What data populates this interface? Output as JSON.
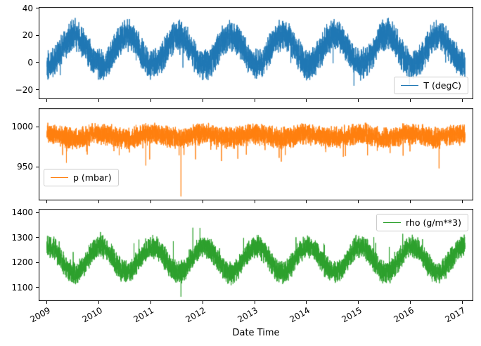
{
  "figure": {
    "background": "#ffffff",
    "xlabel": "Date Time",
    "xlim": [
      2008.84,
      2017.21
    ],
    "x_ticks": [
      2009,
      2010,
      2011,
      2012,
      2013,
      2014,
      2015,
      2016,
      2017
    ],
    "axis_color": "#000000",
    "grid": false
  },
  "chart_data": [
    {
      "type": "line",
      "name": "temperature",
      "series": [
        {
          "name": "T (degC)",
          "color": "#1f77b4"
        }
      ],
      "x_range": [
        2009.0,
        2017.05
      ],
      "ylim": [
        -27,
        41
      ],
      "yticks": [
        -20,
        0,
        20,
        40
      ],
      "legend_position": "lower-right",
      "observed": {
        "min": -23,
        "max": 38,
        "summer_mean": 20,
        "winter_mean": -1,
        "pattern": "annual seasonal cycle with high-frequency noise"
      },
      "signal": {
        "t_start": 2009.0,
        "t_end": 2017.05,
        "n": 6000,
        "mean": 9.5,
        "amp": 11,
        "peak_frac": 0.54,
        "noise1": 7,
        "noise2": 6,
        "rare_prob": 0.006,
        "rare_scale": -9,
        "clamp": [
          -23.5,
          38
        ],
        "spikes": []
      },
      "show_x_labels": false
    },
    {
      "type": "line",
      "name": "pressure",
      "series": [
        {
          "name": "p (mbar)",
          "color": "#ff7f0e"
        }
      ],
      "x_range": [
        2009.0,
        2017.05
      ],
      "ylim": [
        908,
        1023
      ],
      "yticks": [
        950,
        1000
      ],
      "legend_position": "lower-left",
      "observed": {
        "min": 913,
        "max": 1016,
        "typical_mean": 988,
        "outlier": {
          "t": 2011.58,
          "value": 913
        },
        "pattern": "flat noisy band near 990 with rare deep dips"
      },
      "signal": {
        "t_start": 2009.0,
        "t_end": 2017.05,
        "n": 6000,
        "mean": 988.5,
        "amp": 2.5,
        "peak_frac": 0.02,
        "noise1": 9,
        "noise2": 6,
        "rare_prob": 0.005,
        "rare_scale": -22,
        "clamp": [
          948,
          1016
        ],
        "spikes": [
          {
            "t": 2011.58,
            "v": 913
          }
        ]
      },
      "show_x_labels": false
    },
    {
      "type": "line",
      "name": "density",
      "series": [
        {
          "name": "rho (g/m**3)",
          "color": "#2ca02c"
        }
      ],
      "x_range": [
        2009.0,
        2017.05
      ],
      "ylim": [
        1045,
        1415
      ],
      "yticks": [
        1100,
        1200,
        1300,
        1400
      ],
      "legend_position": "upper-right",
      "observed": {
        "min": 1060,
        "max": 1395,
        "winter_mean": 1265,
        "summer_mean": 1160,
        "outlier": {
          "t": 2011.58,
          "value": 1062
        },
        "pattern": "annual seasonal cycle inverse to temperature"
      },
      "signal": {
        "t_start": 2009.0,
        "t_end": 2017.05,
        "n": 6000,
        "mean": 1212,
        "amp": 53,
        "peak_frac": 0.03,
        "noise1": 30,
        "noise2": 22,
        "rare_prob": 0.004,
        "rare_scale": 60,
        "clamp": [
          1075,
          1398
        ],
        "spikes": [
          {
            "t": 2011.58,
            "v": 1062
          }
        ]
      },
      "show_x_labels": true
    }
  ]
}
